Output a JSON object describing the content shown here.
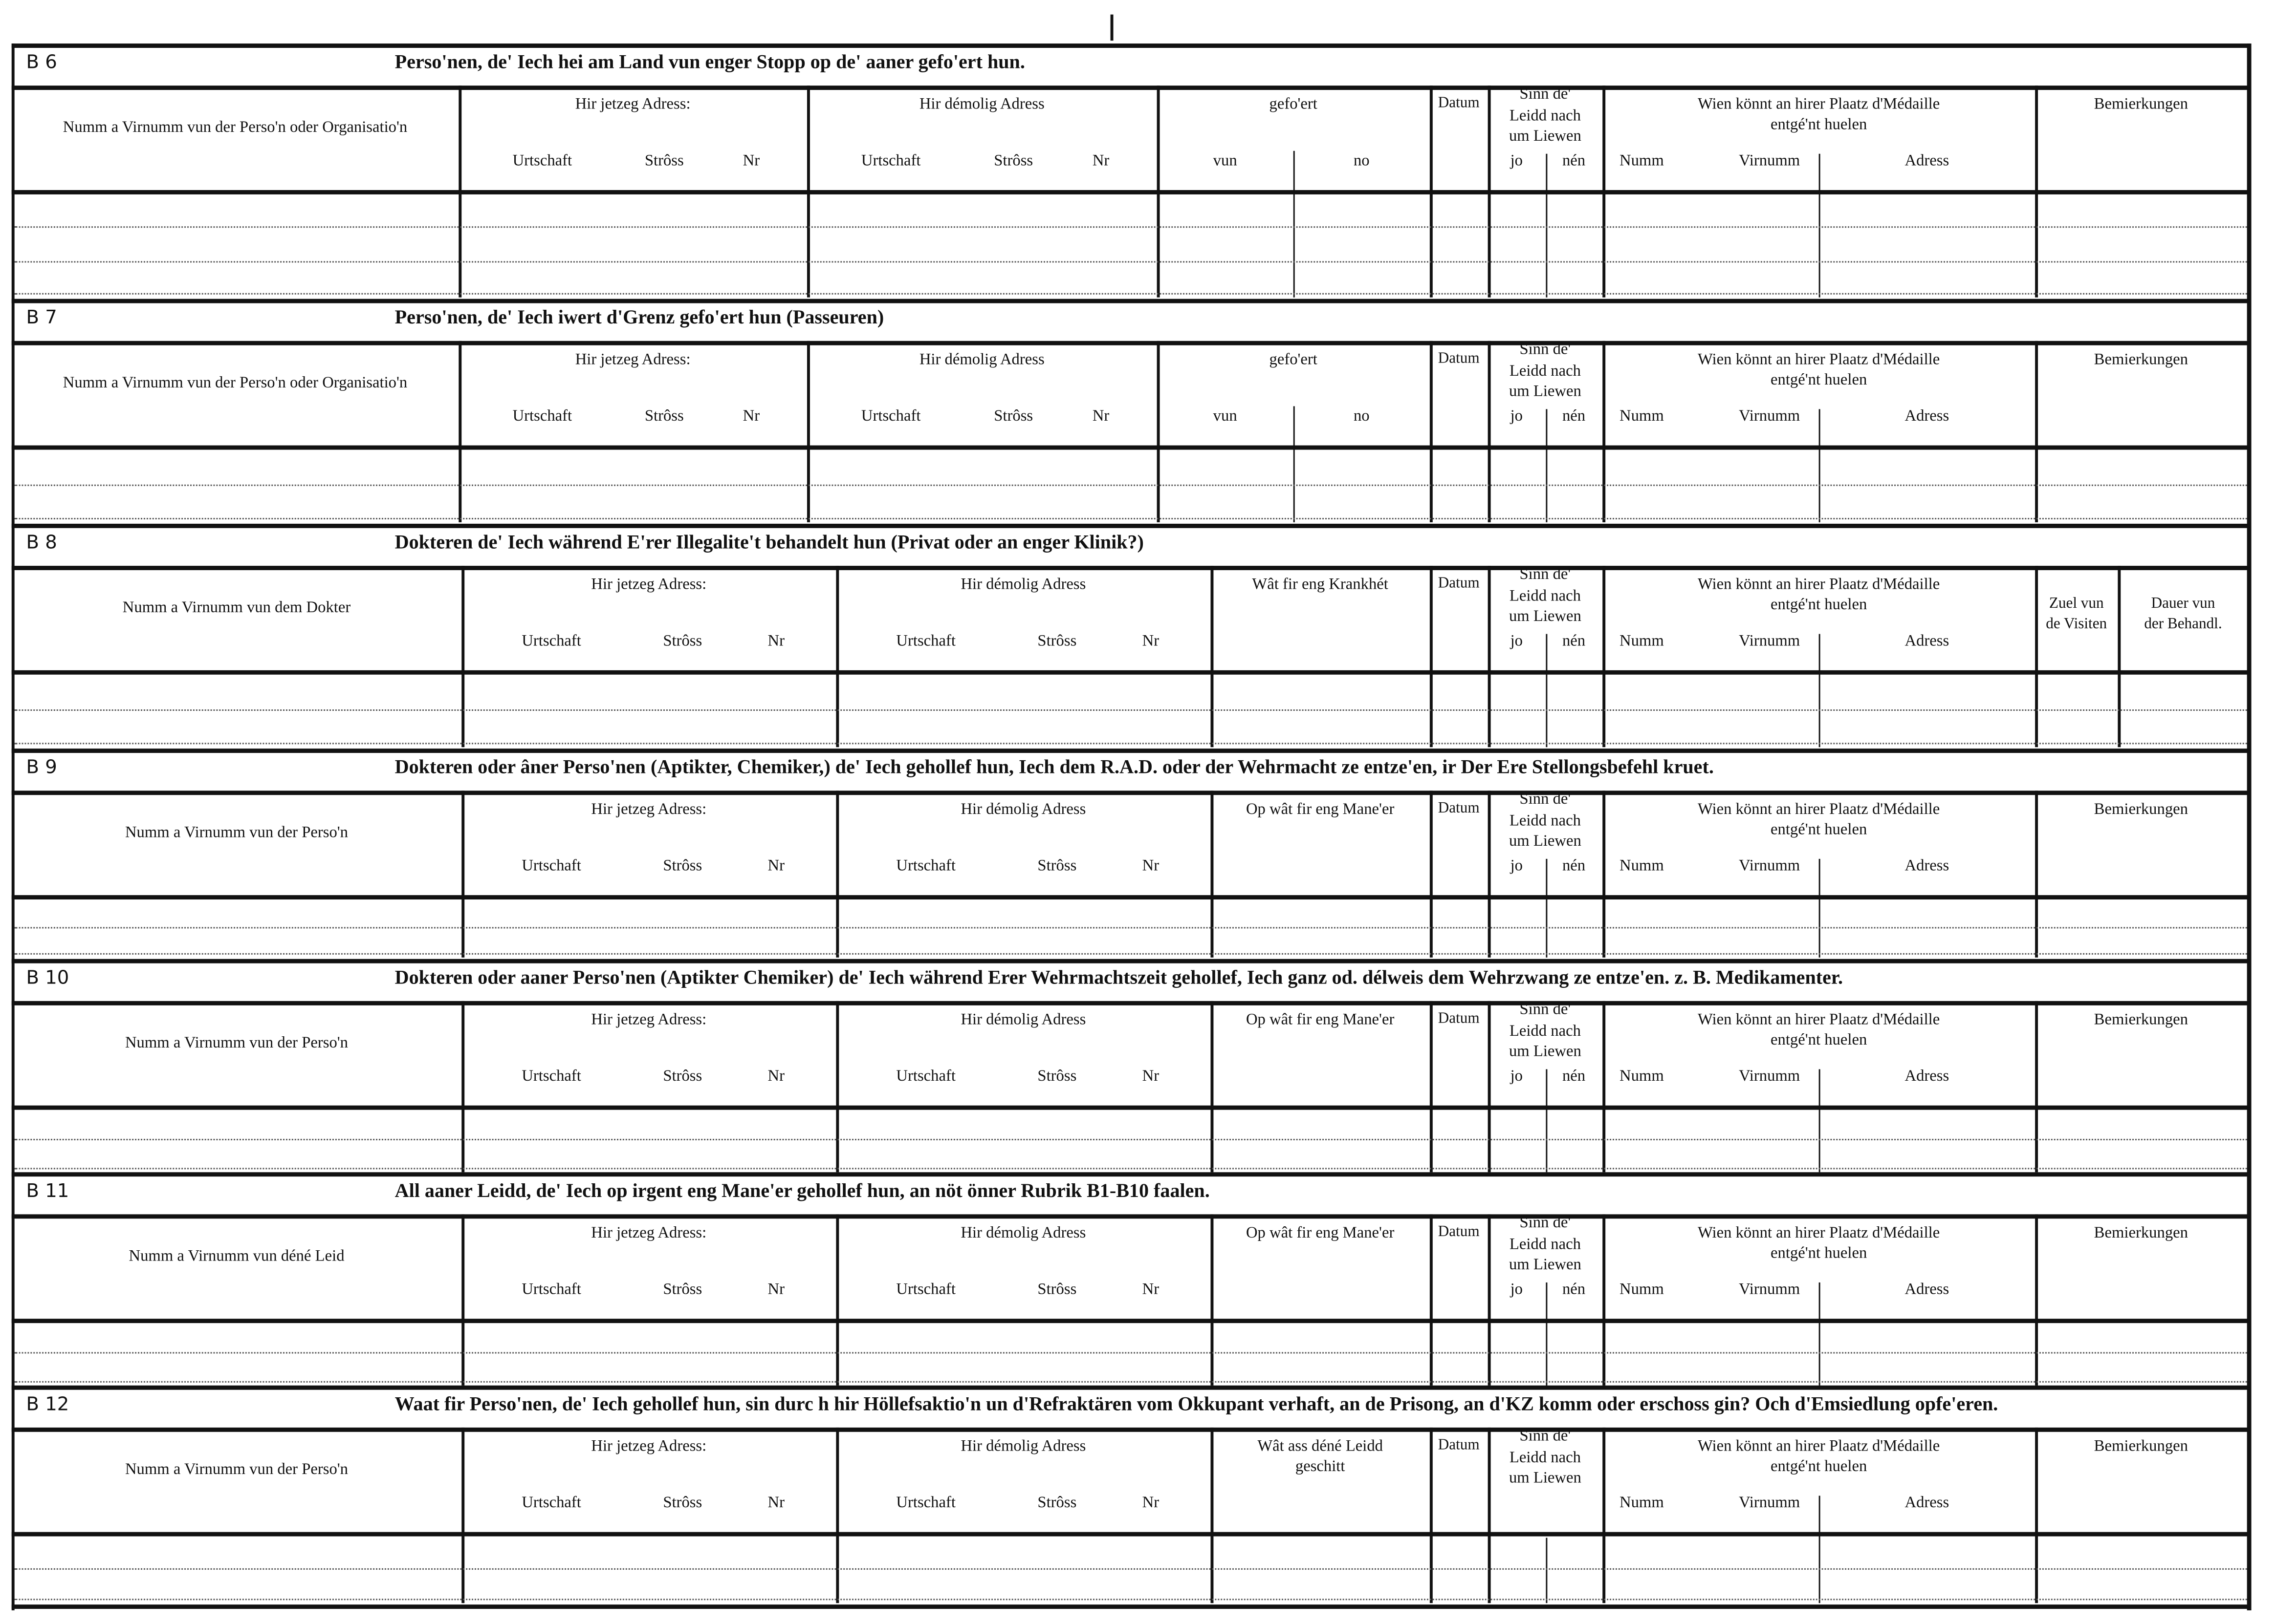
{
  "form": {
    "sections": [
      {
        "code": "B 6",
        "title": "Perso'nen, de' Iech hei am Land vun enger Stopp  op de' aaner gefo'ert hun.",
        "name_header": "Numm a Virnumm vun der Perso'n oder Organisatio'n",
        "current_address": {
          "label": "Hir jetzeg Adress:",
          "sub": [
            "Urtschaft",
            "Strôss",
            "Nr"
          ]
        },
        "former_address": {
          "label": "Hir démolig Adress",
          "sub": [
            "Urtschaft",
            "Strôss",
            "Nr"
          ]
        },
        "col4": {
          "label": "gefo'ert",
          "sub": [
            "vun",
            "no"
          ]
        },
        "date": "Datum",
        "alive": {
          "label": "Sinn  de'\nLeidd  nach\num Liewen",
          "sub": [
            "jo",
            "nén"
          ]
        },
        "medal": {
          "label": "Wien  könnt  an  hirer  Plaatz  d'Médaille\nentgé'nt huelen",
          "sub": [
            "Numm",
            "Virnumm",
            "Adress"
          ]
        },
        "remarks": "Bemierkungen"
      },
      {
        "code": "B 7",
        "title": "Perso'nen, de' Iech iwert d'Grenz gefo'ert hun (Passeuren)",
        "name_header": "Numm a Virnumm vun der Perso'n oder Organisatio'n",
        "current_address": {
          "label": "Hir jetzeg Adress:",
          "sub": [
            "Urtschaft",
            "Strôss",
            "Nr"
          ]
        },
        "former_address": {
          "label": "Hir démolig Adress",
          "sub": [
            "Urtschaft",
            "Strôss",
            "Nr"
          ]
        },
        "col4": {
          "label": "gefo'ert",
          "sub": [
            "vun",
            "no"
          ]
        },
        "date": "Datum",
        "alive": {
          "label": "Sinn  de'\nLeidd  nach\num Liewen",
          "sub": [
            "jo",
            "nén"
          ]
        },
        "medal": {
          "label": "Wien  könnt  an  hirer  Plaatz  d'Médaille\nentgé'nt huelen",
          "sub": [
            "Numm",
            "Virnumm",
            "Adress"
          ]
        },
        "remarks": "Bemierkungen"
      },
      {
        "code": "B 8",
        "title": "Dokteren de' Iech während E'rer Illegalite't behandelt hun (Privat oder an enger Klinik?)",
        "name_header": "Numm a Virnumm vun dem Dokter",
        "current_address": {
          "label": "Hir jetzeg Adress:",
          "sub": [
            "Urtschaft",
            "Strôss",
            "Nr"
          ]
        },
        "former_address": {
          "label": "Hir démolig Adress",
          "sub": [
            "Urtschaft",
            "Strôss",
            "Nr"
          ]
        },
        "col4": {
          "label": "Wât  fir  eng  Krankhét",
          "sub": []
        },
        "date": "Datum",
        "alive": {
          "label": "Sinn  de'\nLeidd  nach\num Liewen",
          "sub": [
            "jo",
            "nén"
          ]
        },
        "medal": {
          "label": "Wien  könnt  an  hirer  Plaatz  d'Médaille\nentgé'nt huelen",
          "sub": [
            "Numm",
            "Virnumm",
            "Adress"
          ]
        },
        "extra": [
          "Zuel vun\nde Visiten",
          "Dauer  vun\nder Behandl."
        ]
      },
      {
        "code": "B 9",
        "title": "Dokteren oder âner Perso'nen (Aptikter, Chemiker,) de' Iech gehollef hun, Iech dem R.A.D. oder der  Wehrmacht  ze  entze'en,  ir  Der Ere  Stellongsbefehl kruet.",
        "name_header": "Numm  a  Virnumm  vun der Perso'n",
        "current_address": {
          "label": "Hir jetzeg Adress:",
          "sub": [
            "Urtschaft",
            "Strôss",
            "Nr"
          ]
        },
        "former_address": {
          "label": "Hir démolig Adress",
          "sub": [
            "Urtschaft",
            "Strôss",
            "Nr"
          ]
        },
        "col4": {
          "label": "Op  wât  fir  eng  Mane'er",
          "sub": []
        },
        "date": "Datum",
        "alive": {
          "label": "Sinn  de'\nLeidd  nach\num Liewen",
          "sub": [
            "jo",
            "nén"
          ]
        },
        "medal": {
          "label": "Wien  könnt  an  hirer  Plaatz  d'Médaille\nentgé'nt huelen",
          "sub": [
            "Numm",
            "Virnumm",
            "Adress"
          ]
        },
        "remarks": "Bemierkungen"
      },
      {
        "code": "B 10",
        "title": "Dokteren oder aaner Perso'nen (Aptikter Chemiker)  de' Iech  während  Erer  Wehrmachtszeit  gehollef,  Iech  ganz  od.  délweis  dem  Wehrzwang  ze  entze'en.  z.  B.  Medikamenter.",
        "name_header": "Numm  a  Virnumm  vun der Perso'n",
        "current_address": {
          "label": "Hir jetzeg Adress:",
          "sub": [
            "Urtschaft",
            "Strôss",
            "Nr"
          ]
        },
        "former_address": {
          "label": "Hir démolig Adress",
          "sub": [
            "Urtschaft",
            "Strôss",
            "Nr"
          ]
        },
        "col4": {
          "label": "Op  wât  fir  eng  Mane'er",
          "sub": []
        },
        "date": "Datum",
        "alive": {
          "label": "Sinn  de'\nLeidd  nach\num Liewen",
          "sub": [
            "jo",
            "nén"
          ]
        },
        "medal": {
          "label": "Wien  könnt  an  hirer  Plaatz  d'Médaille\nentgé'nt huelen",
          "sub": [
            "Numm",
            "Virnumm",
            "Adress"
          ]
        },
        "remarks": "Bemierkungen"
      },
      {
        "code": "B 11",
        "title": "All aaner Leidd, de' Iech op irgent eng Mane'er  gehollef hun, an nöt önner Rubrik B1-B10 faalen.",
        "name_header": "Numm  a  Virnumm  vun  déné  Leid",
        "current_address": {
          "label": "Hir jetzeg Adress:",
          "sub": [
            "Urtschaft",
            "Strôss",
            "Nr"
          ]
        },
        "former_address": {
          "label": "Hir démolig Adress",
          "sub": [
            "Urtschaft",
            "Strôss",
            "Nr"
          ]
        },
        "col4": {
          "label": "Op  wât  fir  eng  Mane'er",
          "sub": []
        },
        "date": "Datum",
        "alive": {
          "label": "Sinn  de'\nLeidd  nach\num Liewen",
          "sub": [
            "jo",
            "nén"
          ]
        },
        "medal": {
          "label": "Wien  könnt  an  hirer  Plaatz  d'Médaille\nentgé'nt huelen",
          "sub": [
            "Numm",
            "Virnumm",
            "Adress"
          ]
        },
        "remarks": "Bemierkungen"
      },
      {
        "code": "B 12",
        "title": "Waat fir Perso'nen, de' Iech gehollef hun, sin durc h hir Höllefsaktio'n un d'Refraktären vom Okkupant verhaft, an de Prisong, an d'KZ komm oder  erschoss gin? Och d'Emsiedlung opfe'eren.",
        "name_header": "Numm  a  Virnumm vun der Perso'n",
        "current_address": {
          "label": "Hir jetzeg Adress:",
          "sub": [
            "Urtschaft",
            "Strôss",
            "Nr"
          ]
        },
        "former_address": {
          "label": "Hir démolig Adress",
          "sub": [
            "Urtschaft",
            "Strôss",
            "Nr"
          ]
        },
        "col4": {
          "label": "Wât  ass  déné  Leidd\ngeschitt",
          "sub": []
        },
        "date": "Datum",
        "alive": {
          "label": "Sinn  de'\nLeidd  nach\num Liewen",
          "sub": []
        },
        "medal": {
          "label": "Wien  könnt  an  hirer  Plaatz  d'Médaille\nentgé'nt huelen",
          "sub": [
            "Numm",
            "Virnumm",
            "Adress"
          ]
        },
        "remarks": "Bemierkungen"
      }
    ]
  }
}
